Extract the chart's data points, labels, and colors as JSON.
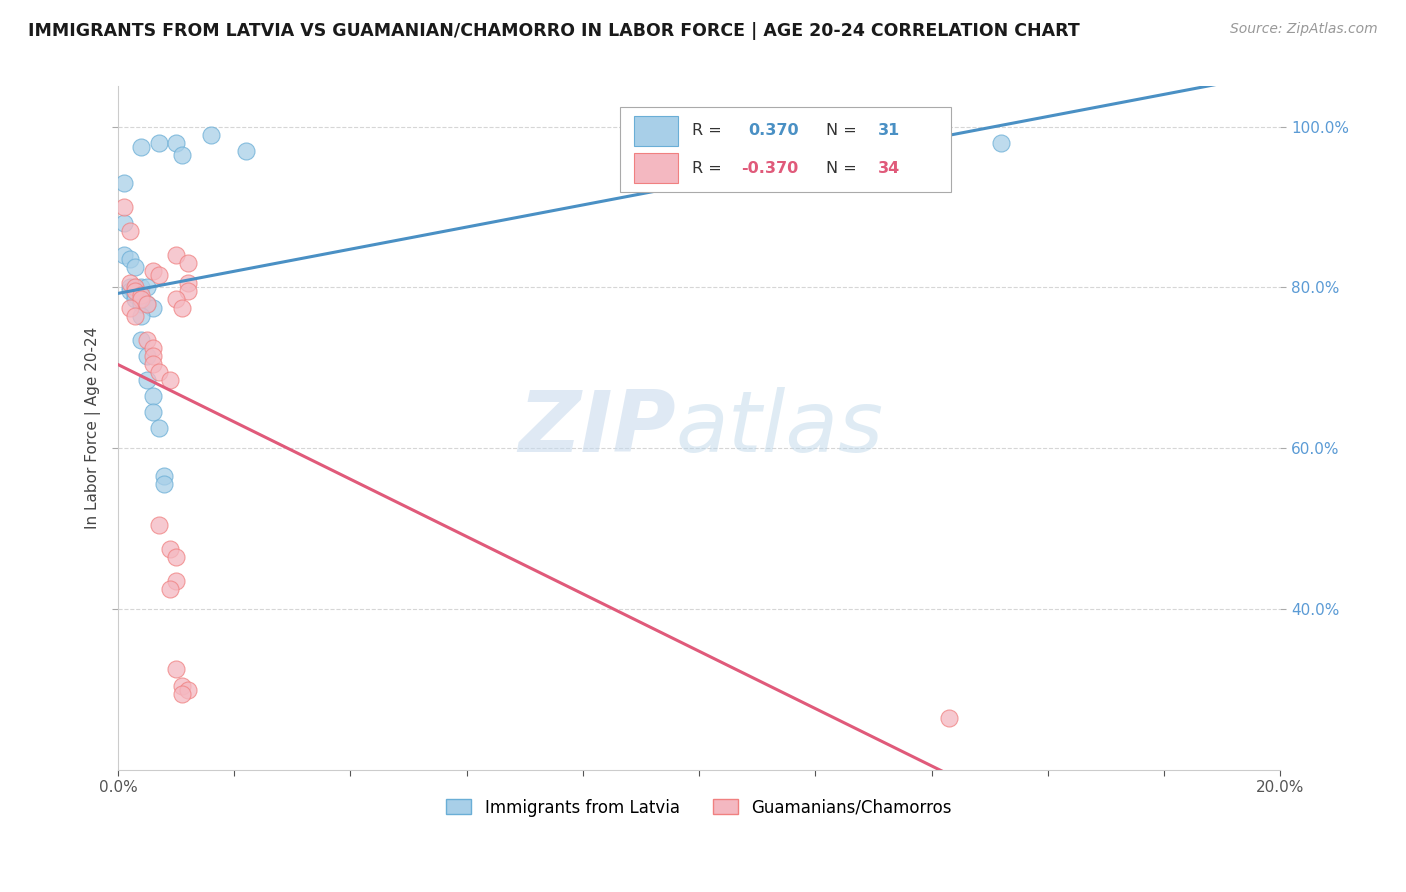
{
  "title": "IMMIGRANTS FROM LATVIA VS GUAMANIAN/CHAMORRO IN LABOR FORCE | AGE 20-24 CORRELATION CHART",
  "source": "Source: ZipAtlas.com",
  "ylabel": "In Labor Force | Age 20-24",
  "xlim": [
    0.0,
    0.2
  ],
  "ylim": [
    0.2,
    1.05
  ],
  "yticks": [
    0.4,
    0.6,
    0.8,
    1.0
  ],
  "ytick_labels": [
    "40.0%",
    "60.0%",
    "80.0%",
    "100.0%"
  ],
  "xtick_vals": [
    0.0,
    0.02,
    0.04,
    0.06,
    0.08,
    0.1,
    0.12,
    0.14,
    0.16,
    0.18,
    0.2
  ],
  "xtick_labels": [
    "0.0%",
    "",
    "",
    "",
    "",
    "",
    "",
    "",
    "",
    "",
    "20.0%"
  ],
  "blue_R": 0.37,
  "blue_N": 31,
  "pink_R": -0.37,
  "pink_N": 34,
  "blue_color": "#a8cfe8",
  "pink_color": "#f4b8c1",
  "blue_edge_color": "#6aaed6",
  "pink_edge_color": "#f08080",
  "blue_line_color": "#4a90c4",
  "pink_line_color": "#e05a7a",
  "blue_scatter": [
    [
      0.004,
      0.975
    ],
    [
      0.007,
      0.98
    ],
    [
      0.01,
      0.98
    ],
    [
      0.011,
      0.965
    ],
    [
      0.016,
      0.99
    ],
    [
      0.022,
      0.97
    ],
    [
      0.001,
      0.93
    ],
    [
      0.001,
      0.88
    ],
    [
      0.001,
      0.84
    ],
    [
      0.002,
      0.835
    ],
    [
      0.003,
      0.825
    ],
    [
      0.002,
      0.8
    ],
    [
      0.003,
      0.8
    ],
    [
      0.004,
      0.8
    ],
    [
      0.005,
      0.8
    ],
    [
      0.002,
      0.795
    ],
    [
      0.003,
      0.79
    ],
    [
      0.003,
      0.785
    ],
    [
      0.004,
      0.78
    ],
    [
      0.005,
      0.78
    ],
    [
      0.006,
      0.775
    ],
    [
      0.004,
      0.765
    ],
    [
      0.004,
      0.735
    ],
    [
      0.005,
      0.715
    ],
    [
      0.005,
      0.685
    ],
    [
      0.006,
      0.665
    ],
    [
      0.006,
      0.645
    ],
    [
      0.007,
      0.625
    ],
    [
      0.008,
      0.565
    ],
    [
      0.008,
      0.555
    ],
    [
      0.152,
      0.98
    ]
  ],
  "pink_scatter": [
    [
      0.002,
      0.805
    ],
    [
      0.003,
      0.8
    ],
    [
      0.003,
      0.795
    ],
    [
      0.004,
      0.79
    ],
    [
      0.004,
      0.785
    ],
    [
      0.005,
      0.78
    ],
    [
      0.002,
      0.775
    ],
    [
      0.003,
      0.765
    ],
    [
      0.001,
      0.9
    ],
    [
      0.002,
      0.87
    ],
    [
      0.01,
      0.84
    ],
    [
      0.012,
      0.83
    ],
    [
      0.006,
      0.82
    ],
    [
      0.007,
      0.815
    ],
    [
      0.012,
      0.805
    ],
    [
      0.012,
      0.795
    ],
    [
      0.01,
      0.785
    ],
    [
      0.011,
      0.775
    ],
    [
      0.005,
      0.735
    ],
    [
      0.006,
      0.725
    ],
    [
      0.006,
      0.715
    ],
    [
      0.006,
      0.705
    ],
    [
      0.007,
      0.695
    ],
    [
      0.009,
      0.685
    ],
    [
      0.007,
      0.505
    ],
    [
      0.009,
      0.475
    ],
    [
      0.01,
      0.465
    ],
    [
      0.01,
      0.435
    ],
    [
      0.009,
      0.425
    ],
    [
      0.01,
      0.325
    ],
    [
      0.011,
      0.305
    ],
    [
      0.012,
      0.3
    ],
    [
      0.143,
      0.265
    ],
    [
      0.011,
      0.295
    ]
  ],
  "watermark_zip": "ZIP",
  "watermark_atlas": "atlas",
  "legend_box_color": "white",
  "legend_border_color": "#cccccc"
}
